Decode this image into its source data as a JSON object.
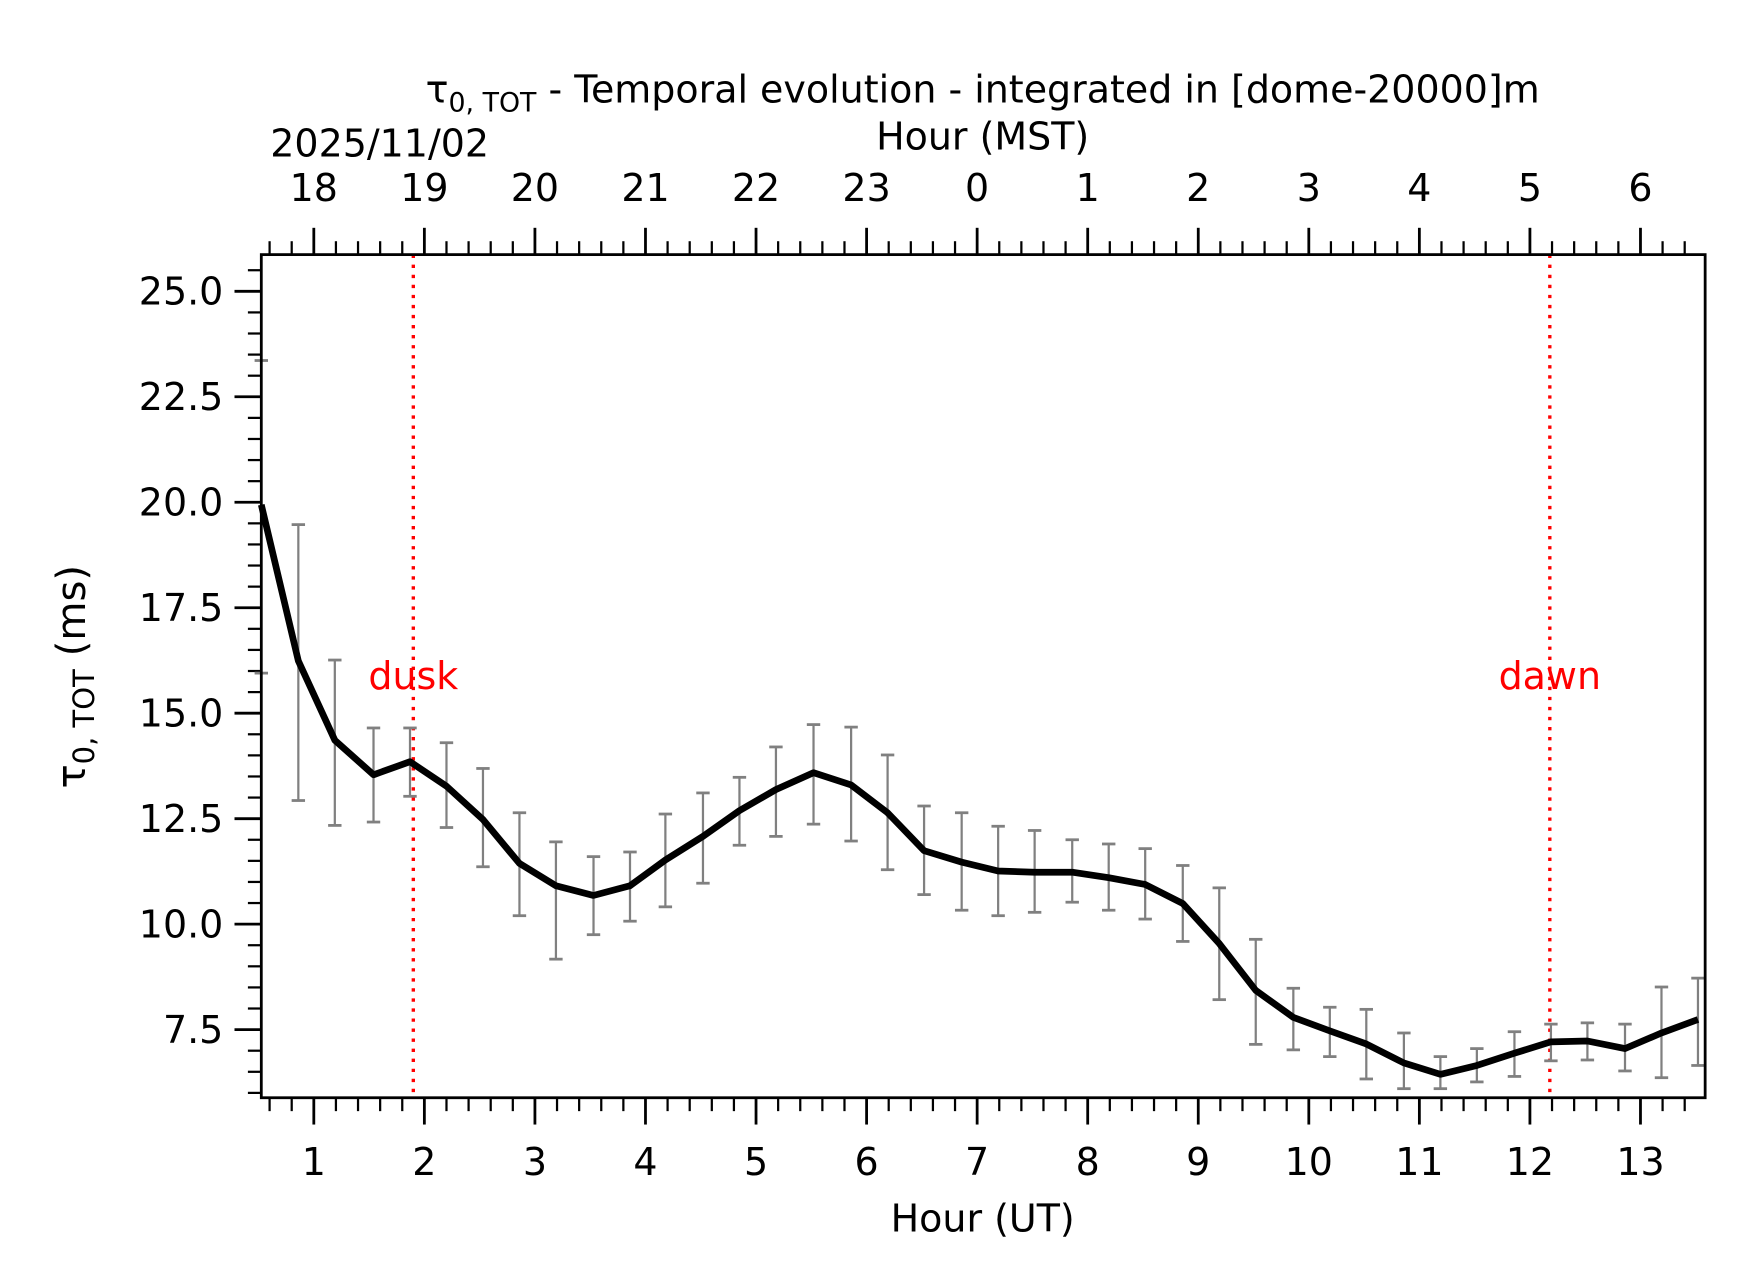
{
  "chart_data": {
    "type": "line",
    "title_symbol": "τ",
    "title_subscript": "0, TOT",
    "title_rest": " - Temporal evolution - integrated in [dome-20000]m",
    "date_label": "2025/11/02",
    "xlabel": "Hour (UT)",
    "xlabel_top": "Hour (MST)",
    "ylabel_symbol": "τ",
    "ylabel_subscript": "0, TOT",
    "ylabel_rest": " (ms)",
    "xlim": [
      0.525,
      13.585
    ],
    "ylim": [
      5.885,
      25.87
    ],
    "x_ticks": [
      1,
      2,
      3,
      4,
      5,
      6,
      7,
      8,
      9,
      10,
      11,
      12,
      13
    ],
    "x_tick_labels": [
      "1",
      "2",
      "3",
      "4",
      "5",
      "6",
      "7",
      "8",
      "9",
      "10",
      "11",
      "12",
      "13"
    ],
    "x_top_tick_labels": [
      "18",
      "19",
      "20",
      "21",
      "22",
      "23",
      "0",
      "1",
      "2",
      "3",
      "4",
      "5",
      "6"
    ],
    "y_ticks": [
      7.5,
      10.0,
      12.5,
      15.0,
      17.5,
      20.0,
      22.5,
      25.0
    ],
    "y_tick_labels": [
      "7.5",
      "10.0",
      "12.5",
      "15.0",
      "17.5",
      "20.0",
      "22.5",
      "25.0"
    ],
    "grid": false,
    "series": [
      {
        "color": "#000000",
        "errorbar_color": "#808080",
        "x": [
          0.525,
          0.86,
          1.19,
          1.54,
          1.87,
          2.2,
          2.53,
          2.86,
          3.19,
          3.53,
          3.86,
          4.18,
          4.52,
          4.85,
          5.18,
          5.52,
          5.86,
          6.19,
          6.52,
          6.86,
          7.19,
          7.52,
          7.86,
          8.19,
          8.52,
          8.86,
          9.19,
          9.52,
          9.86,
          10.19,
          10.52,
          10.86,
          11.19,
          11.52,
          11.86,
          12.19,
          12.52,
          12.86,
          13.19,
          13.52
        ],
        "y": [
          19.94,
          16.24,
          14.36,
          13.54,
          13.85,
          13.27,
          12.48,
          11.44,
          10.91,
          10.68,
          10.91,
          11.52,
          12.08,
          12.69,
          13.19,
          13.59,
          13.3,
          12.64,
          11.74,
          11.47,
          11.26,
          11.23,
          11.23,
          11.1,
          10.94,
          10.49,
          9.54,
          8.43,
          7.79,
          7.47,
          7.16,
          6.71,
          6.44,
          6.65,
          6.94,
          7.21,
          7.23,
          7.05,
          7.42,
          7.74
        ],
        "y_upper": [
          23.36,
          19.47,
          16.26,
          14.65,
          14.65,
          14.3,
          13.69,
          12.64,
          11.95,
          11.6,
          11.71,
          12.61,
          13.11,
          13.48,
          14.2,
          14.73,
          14.67,
          14.01,
          12.8,
          12.64,
          12.32,
          12.22,
          12.0,
          11.9,
          11.79,
          11.39,
          10.86,
          9.64,
          8.48,
          8.03,
          7.98,
          7.42,
          6.86,
          7.05,
          7.45,
          7.63,
          7.66,
          7.63,
          8.51,
          8.72
        ],
        "y_lower": [
          15.95,
          12.93,
          12.34,
          12.42,
          13.03,
          12.29,
          11.36,
          10.2,
          9.17,
          9.75,
          10.07,
          10.41,
          10.97,
          11.87,
          12.08,
          12.37,
          11.97,
          11.29,
          10.7,
          10.33,
          10.2,
          10.28,
          10.52,
          10.33,
          10.12,
          9.59,
          8.21,
          7.15,
          7.02,
          6.86,
          6.33,
          6.1,
          6.1,
          6.26,
          6.39,
          6.76,
          6.78,
          6.52,
          6.36,
          6.65
        ]
      }
    ],
    "annotations": [
      {
        "text": "dusk",
        "x": 1.9,
        "color": "#ff0000"
      },
      {
        "text": "dawn",
        "x": 12.18,
        "color": "#ff0000"
      }
    ]
  }
}
